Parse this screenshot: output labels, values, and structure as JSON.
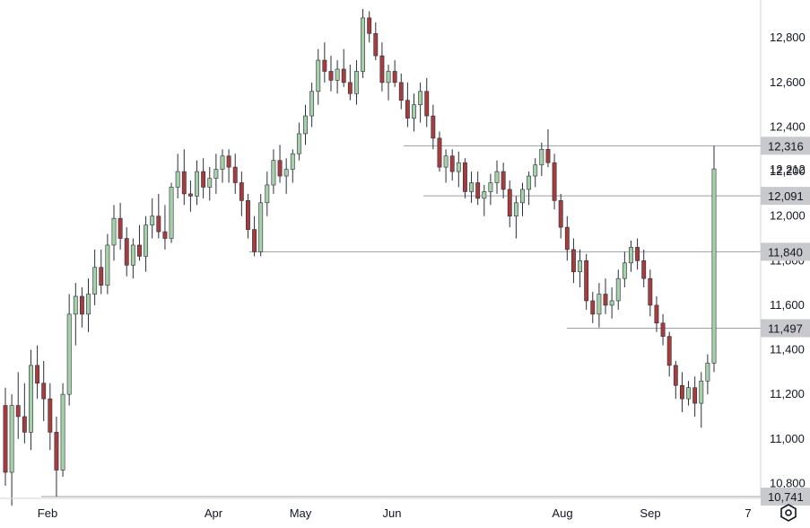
{
  "chart_data": {
    "type": "candlestick",
    "title": "",
    "xlabel": "",
    "ylabel": "",
    "ylim": [
      10600,
      12930
    ],
    "y_ticks": [
      "10,800",
      "11,000",
      "11,200",
      "11,400",
      "11,600",
      "11,800",
      "12,000",
      "12,200",
      "12,400",
      "12,600",
      "12,800"
    ],
    "y_tick_values": [
      10800,
      11000,
      11200,
      11400,
      11600,
      11800,
      12000,
      12200,
      12400,
      12600,
      12800
    ],
    "x_ticks": [
      "Feb",
      "Apr",
      "May",
      "Jun",
      "Aug",
      "Sep",
      "7"
    ],
    "last_price": {
      "value": 12212,
      "label": "12,212"
    },
    "levels": [
      {
        "value": 12316,
        "label": "12,316",
        "start": "Jul"
      },
      {
        "value": 12091,
        "label": "12,091",
        "start": "Jun"
      },
      {
        "value": 11840,
        "label": "11,840",
        "start": "Apr"
      },
      {
        "value": 11497,
        "label": "11,497",
        "start": "Aug"
      },
      {
        "value": 10741,
        "label": "10,741",
        "start": "Feb"
      }
    ],
    "candles": [
      [
        11150,
        11230,
        10790,
        10850
      ],
      [
        10850,
        11200,
        10700,
        11150
      ],
      [
        11150,
        11300,
        11000,
        11100
      ],
      [
        11100,
        11250,
        10980,
        11030
      ],
      [
        11030,
        11400,
        10950,
        11330
      ],
      [
        11330,
        11420,
        11180,
        11250
      ],
      [
        11250,
        11350,
        11080,
        11180
      ],
      [
        11180,
        11250,
        10950,
        11030
      ],
      [
        11030,
        11100,
        10741,
        10860
      ],
      [
        10860,
        11250,
        10830,
        11200
      ],
      [
        11200,
        11650,
        11150,
        11560
      ],
      [
        11560,
        11700,
        11420,
        11640
      ],
      [
        11640,
        11680,
        11500,
        11560
      ],
      [
        11560,
        11720,
        11480,
        11650
      ],
      [
        11650,
        11850,
        11600,
        11770
      ],
      [
        11770,
        11850,
        11650,
        11690
      ],
      [
        11690,
        11920,
        11650,
        11870
      ],
      [
        11870,
        12050,
        11800,
        11990
      ],
      [
        11990,
        12060,
        11850,
        11900
      ],
      [
        11900,
        11950,
        11730,
        11780
      ],
      [
        11780,
        11900,
        11720,
        11870
      ],
      [
        11870,
        11960,
        11800,
        11820
      ],
      [
        11820,
        12000,
        11750,
        11960
      ],
      [
        11960,
        12080,
        11900,
        12000
      ],
      [
        12000,
        12100,
        11900,
        11930
      ],
      [
        11930,
        12050,
        11850,
        11900
      ],
      [
        11900,
        12150,
        11880,
        12130
      ],
      [
        12130,
        12280,
        12080,
        12200
      ],
      [
        12200,
        12300,
        12050,
        12100
      ],
      [
        12100,
        12160,
        12020,
        12090
      ],
      [
        12090,
        12250,
        12050,
        12200
      ],
      [
        12200,
        12260,
        12080,
        12130
      ],
      [
        12130,
        12220,
        12070,
        12170
      ],
      [
        12170,
        12280,
        12100,
        12210
      ],
      [
        12210,
        12300,
        12150,
        12270
      ],
      [
        12270,
        12300,
        12150,
        12220
      ],
      [
        12220,
        12280,
        12100,
        12150
      ],
      [
        12150,
        12200,
        12000,
        12070
      ],
      [
        12070,
        12100,
        11900,
        11940
      ],
      [
        11940,
        12000,
        11820,
        11840
      ],
      [
        11840,
        12100,
        11820,
        12060
      ],
      [
        12060,
        12200,
        12000,
        12140
      ],
      [
        12140,
        12300,
        12100,
        12250
      ],
      [
        12250,
        12320,
        12150,
        12180
      ],
      [
        12180,
        12260,
        12100,
        12210
      ],
      [
        12210,
        12300,
        12150,
        12280
      ],
      [
        12280,
        12420,
        12250,
        12370
      ],
      [
        12370,
        12500,
        12320,
        12450
      ],
      [
        12450,
        12600,
        12400,
        12560
      ],
      [
        12560,
        12750,
        12500,
        12700
      ],
      [
        12700,
        12780,
        12600,
        12650
      ],
      [
        12650,
        12720,
        12560,
        12610
      ],
      [
        12610,
        12700,
        12550,
        12660
      ],
      [
        12660,
        12750,
        12580,
        12600
      ],
      [
        12600,
        12680,
        12520,
        12550
      ],
      [
        12550,
        12700,
        12500,
        12650
      ],
      [
        12650,
        12930,
        12620,
        12890
      ],
      [
        12890,
        12920,
        12780,
        12820
      ],
      [
        12820,
        12870,
        12700,
        12720
      ],
      [
        12720,
        12780,
        12560,
        12600
      ],
      [
        12600,
        12680,
        12520,
        12650
      ],
      [
        12650,
        12700,
        12580,
        12600
      ],
      [
        12600,
        12640,
        12480,
        12520
      ],
      [
        12520,
        12600,
        12400,
        12440
      ],
      [
        12440,
        12550,
        12380,
        12500
      ],
      [
        12500,
        12600,
        12420,
        12560
      ],
      [
        12560,
        12620,
        12400,
        12450
      ],
      [
        12450,
        12500,
        12300,
        12350
      ],
      [
        12350,
        12380,
        12200,
        12220
      ],
      [
        12220,
        12300,
        12150,
        12270
      ],
      [
        12270,
        12300,
        12160,
        12200
      ],
      [
        12200,
        12290,
        12130,
        12240
      ],
      [
        12240,
        12260,
        12080,
        12110
      ],
      [
        12110,
        12200,
        12060,
        12150
      ],
      [
        12150,
        12200,
        12050,
        12080
      ],
      [
        12080,
        12140,
        12000,
        12110
      ],
      [
        12110,
        12190,
        12050,
        12150
      ],
      [
        12150,
        12250,
        12100,
        12200
      ],
      [
        12200,
        12240,
        12080,
        12120
      ],
      [
        12120,
        12160,
        11950,
        12000
      ],
      [
        12000,
        12090,
        11900,
        12060
      ],
      [
        12060,
        12150,
        12000,
        12120
      ],
      [
        12120,
        12200,
        12050,
        12180
      ],
      [
        12180,
        12260,
        12130,
        12230
      ],
      [
        12230,
        12330,
        12180,
        12300
      ],
      [
        12300,
        12390,
        12220,
        12240
      ],
      [
        12240,
        12280,
        12030,
        12070
      ],
      [
        12070,
        12100,
        11900,
        11950
      ],
      [
        11950,
        12000,
        11800,
        11850
      ],
      [
        11850,
        11900,
        11700,
        11750
      ],
      [
        11750,
        11850,
        11680,
        11800
      ],
      [
        11800,
        11830,
        11580,
        11620
      ],
      [
        11620,
        11660,
        11520,
        11560
      ],
      [
        11560,
        11700,
        11500,
        11650
      ],
      [
        11650,
        11720,
        11560,
        11600
      ],
      [
        11600,
        11680,
        11540,
        11620
      ],
      [
        11620,
        11760,
        11580,
        11720
      ],
      [
        11720,
        11840,
        11680,
        11790
      ],
      [
        11790,
        11890,
        11750,
        11860
      ],
      [
        11860,
        11900,
        11760,
        11800
      ],
      [
        11800,
        11850,
        11680,
        11720
      ],
      [
        11720,
        11760,
        11550,
        11600
      ],
      [
        11600,
        11640,
        11480,
        11520
      ],
      [
        11520,
        11560,
        11420,
        11460
      ],
      [
        11460,
        11480,
        11280,
        11330
      ],
      [
        11330,
        11350,
        11180,
        11240
      ],
      [
        11240,
        11300,
        11120,
        11180
      ],
      [
        11180,
        11260,
        11150,
        11230
      ],
      [
        11230,
        11280,
        11100,
        11160
      ],
      [
        11160,
        11300,
        11050,
        11260
      ],
      [
        11260,
        11380,
        11200,
        11340
      ],
      [
        11340,
        12316,
        11300,
        12212
      ]
    ]
  },
  "settings_icon": "settings-hexagon-icon",
  "colors": {
    "up": "#a6d1a8",
    "down": "#a63d3d",
    "wick": "#2a2e39",
    "level_line": "#9aa0a6",
    "badge_bg": "#c8c9cc",
    "axis_line": "#d6d6d6"
  }
}
